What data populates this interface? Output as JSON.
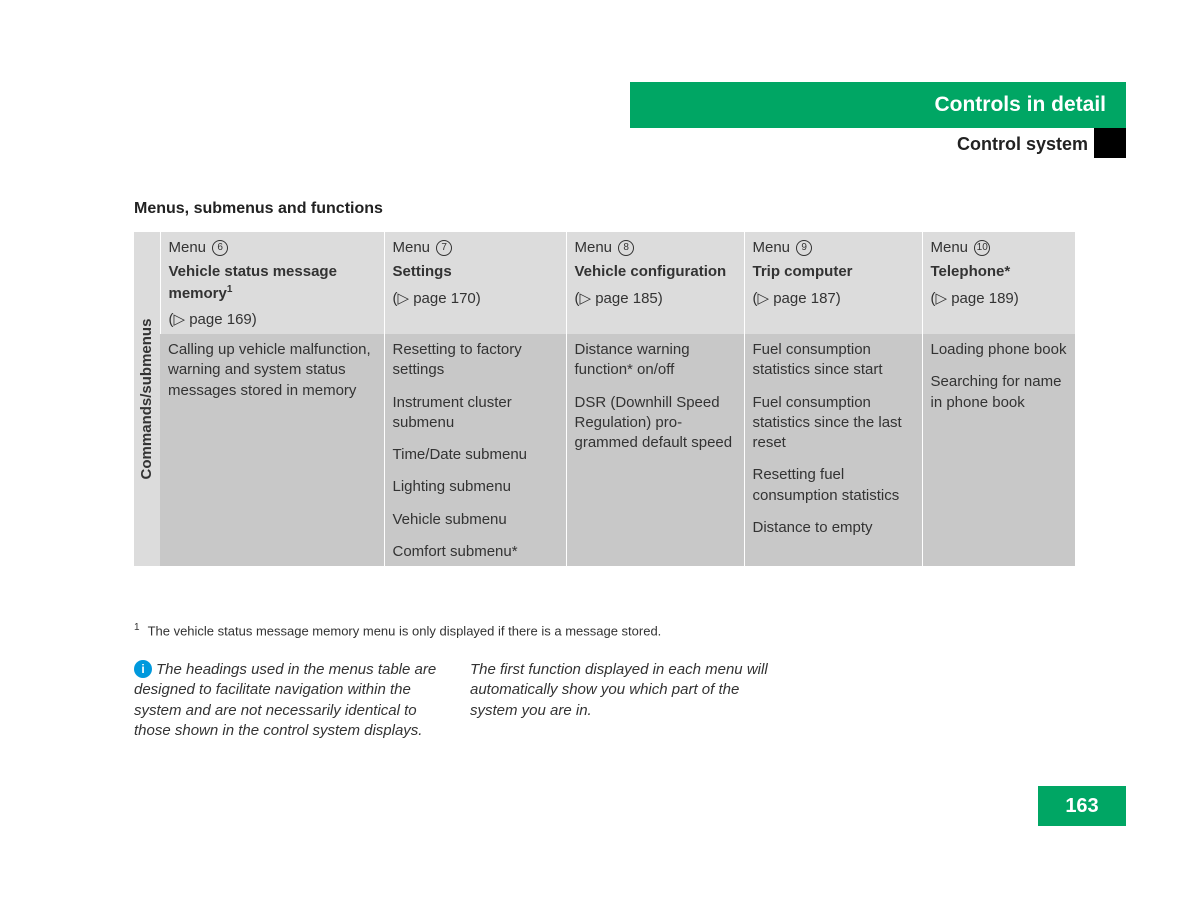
{
  "header": {
    "title": "Controls in detail",
    "subtitle": "Control system",
    "header_bg": "#00a664"
  },
  "section_title": "Menus, submenus and functions",
  "side_label": "Commands/submenus",
  "columns": [
    {
      "menu_label": "Menu",
      "menu_num": "6",
      "menu_name": "Vehicle status message memory",
      "superscript": "1",
      "page_ref": "(▷ page 169)",
      "items": [
        "Calling up vehicle malfunction, warning and system status messages stored in memory"
      ]
    },
    {
      "menu_label": "Menu",
      "menu_num": "7",
      "menu_name": "Settings",
      "page_ref": "(▷ page 170)",
      "items": [
        "Resetting to factory settings",
        "Instrument cluster submenu",
        "Time/Date submenu",
        "Lighting submenu",
        "Vehicle submenu",
        "Comfort submenu*"
      ]
    },
    {
      "menu_label": "Menu",
      "menu_num": "8",
      "menu_name": "Vehicle configuration",
      "page_ref": "(▷ page 185)",
      "items": [
        "Distance warning function* on/off",
        "DSR (Downhill Speed Regulation) pro­grammed default speed"
      ]
    },
    {
      "menu_label": "Menu",
      "menu_num": "9",
      "menu_name": "Trip computer",
      "page_ref": "(▷ page 187)",
      "items": [
        "Fuel consumption statistics since start",
        "Fuel consumption statis­tics since the last reset",
        "Resetting fuel consump­tion statistics",
        "Distance to empty"
      ]
    },
    {
      "menu_label": "Menu",
      "menu_num": "10",
      "menu_name": "Telephone*",
      "page_ref": "(▷ page 189)",
      "items": [
        "Loading phone book",
        "Searching for name in phone book"
      ]
    }
  ],
  "footnote": {
    "marker": "1",
    "text": "The vehicle status message memory menu is only displayed if there is a message stored."
  },
  "info": {
    "col1": "The headings used in the menus table are designed to facilitate navigation within the sys­tem and are not necessarily identical to those shown in the control system displays.",
    "col2": "The first function displayed in each menu will automatically show you which part of the system you are in."
  },
  "page_number": "163"
}
